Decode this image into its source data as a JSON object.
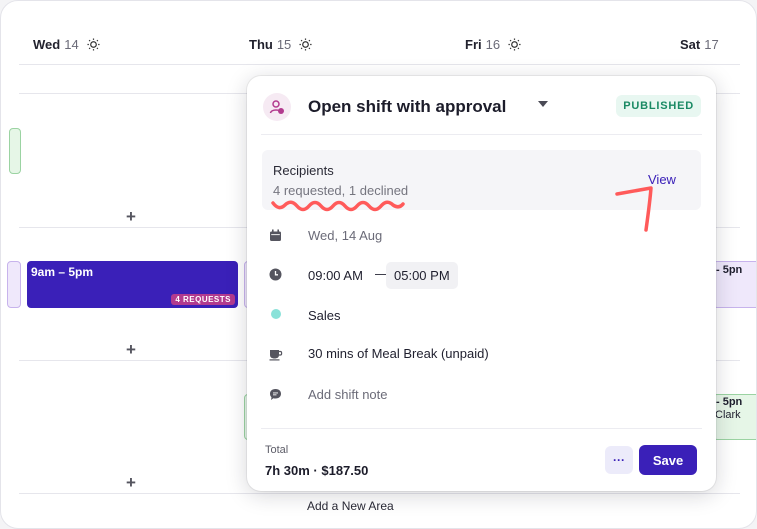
{
  "calendar": {
    "days": [
      {
        "name": "Wed",
        "date": "14"
      },
      {
        "name": "Thu",
        "date": "15"
      },
      {
        "name": "Fri",
        "date": "16"
      },
      {
        "name": "Sat",
        "date": "17"
      }
    ],
    "shift_time": "9am – 5pm",
    "shift_badge": "4 REQUESTS",
    "right_shift_time_partial": "- 5pn",
    "right_shift_name_partial": "Clark",
    "add_symbol": "+",
    "add_area_label": "Add a New Area"
  },
  "popover": {
    "title": "Open shift with approval",
    "status": "PUBLISHED",
    "recipients": {
      "label": "Recipients",
      "summary": "4 requested, 1 declined",
      "view_label": "View"
    },
    "date": "Wed, 14 Aug",
    "start_time": "09:00 AM",
    "separator": "—",
    "end_time": "05:00 PM",
    "area": "Sales",
    "break": "30 mins of Meal Break (unpaid)",
    "note_placeholder": "Add shift note",
    "total_label": "Total",
    "total_value": "7h 30m · $187.50",
    "more_label": "···",
    "save_label": "Save"
  },
  "colors": {
    "accent": "#3a20b8",
    "badge": "#b23a8e",
    "published": "#1a8a64",
    "sales_dot": "#8ae2d9",
    "annotation": "#ff5a5a"
  }
}
